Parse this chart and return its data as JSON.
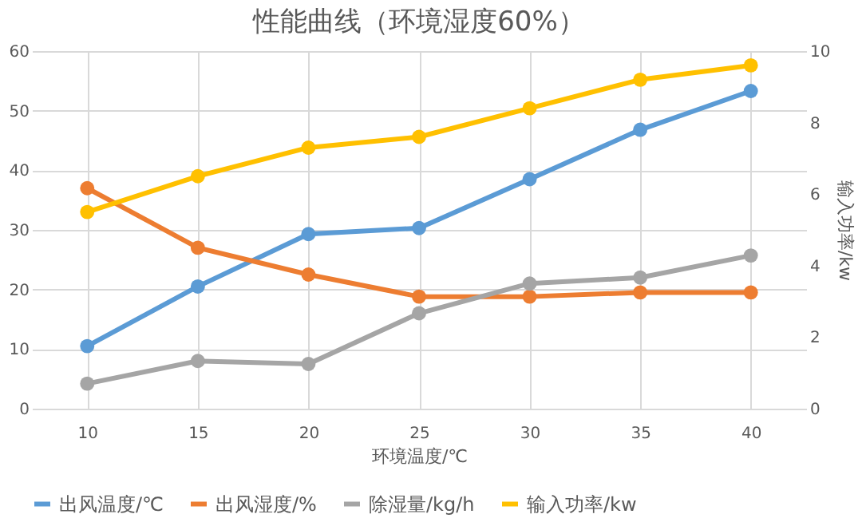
{
  "chart_data": {
    "type": "line",
    "title": "性能曲线（环境湿度60%）",
    "xlabel": "环境温度/℃",
    "y2label": "输入功率/kw",
    "categories": [
      "10",
      "15",
      "20",
      "25",
      "30",
      "35",
      "40"
    ],
    "series": [
      {
        "name": "出风温度/℃",
        "color": "#5b9bd5",
        "values": [
          10.5,
          20.5,
          29.3,
          30.3,
          38.5,
          46.8,
          53.3
        ]
      },
      {
        "name": "出风湿度/%",
        "color": "#ed7d31",
        "values": [
          37,
          27,
          22.5,
          18.8,
          18.8,
          19.5,
          19.5
        ]
      },
      {
        "name": "除湿量/kg/h",
        "color": "#a5a5a5",
        "values": [
          4.2,
          8,
          7.5,
          16,
          21,
          22,
          25.7
        ]
      },
      {
        "name": "输入功率/kw",
        "color": "#ffc000",
        "axis": "y2",
        "values": [
          5.5,
          6.5,
          7.3,
          7.6,
          8.4,
          9.2,
          9.6
        ]
      }
    ],
    "ylim": [
      0,
      60
    ],
    "yticks": [
      0,
      10,
      20,
      30,
      40,
      50,
      60
    ],
    "y2lim": [
      0,
      10
    ],
    "y2ticks": [
      0,
      2,
      4,
      6,
      8,
      10
    ],
    "grid": true,
    "legend": "bottom",
    "marker": "circle",
    "line_style": "solid"
  }
}
